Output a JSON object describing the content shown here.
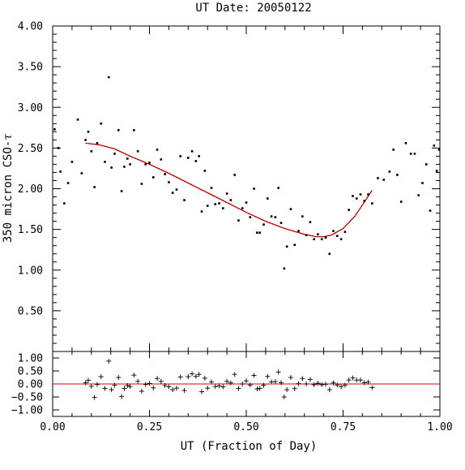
{
  "chart_data": {
    "type": "scatter",
    "title": "UT Date: 20050122",
    "xlabel": "UT (Fraction of Day)",
    "ylabel": "350 micron CSO-",
    "ylabel_symbol": "τ",
    "xlim": [
      0,
      1
    ],
    "ylim": [
      0,
      4
    ],
    "resid_ylim": [
      -1.25,
      1.25
    ],
    "x_ticks": [
      "0.00",
      "0.25",
      "0.50",
      "0.75",
      "1.00"
    ],
    "x_tick_values": [
      0,
      0.25,
      0.5,
      0.75,
      1.0
    ],
    "y_ticks": [
      "0.50",
      "1.00",
      "1.50",
      "2.00",
      "2.50",
      "3.00",
      "3.50",
      "4.00"
    ],
    "y_tick_values": [
      0.5,
      1.0,
      1.5,
      2.0,
      2.5,
      3.0,
      3.5,
      4.0
    ],
    "resid_ticks": [
      "−1.00",
      "−0.50",
      "0.00",
      "0.50",
      "1.00"
    ],
    "resid_tick_values": [
      -1.0,
      -0.5,
      0.0,
      0.5,
      1.0
    ],
    "fit_color": "#e00000",
    "points": [
      [
        0.005,
        2.73
      ],
      [
        0.015,
        2.5
      ],
      [
        0.02,
        2.21
      ],
      [
        0.03,
        1.82
      ],
      [
        0.04,
        2.07
      ],
      [
        0.05,
        2.33
      ],
      [
        0.065,
        2.85
      ],
      [
        0.075,
        2.19
      ],
      [
        0.085,
        2.6
      ],
      [
        0.092,
        2.7
      ],
      [
        0.1,
        2.46
      ],
      [
        0.108,
        2.02
      ],
      [
        0.115,
        2.56
      ],
      [
        0.125,
        2.8
      ],
      [
        0.135,
        2.33
      ],
      [
        0.145,
        3.37
      ],
      [
        0.152,
        2.26
      ],
      [
        0.16,
        2.43
      ],
      [
        0.17,
        2.72
      ],
      [
        0.178,
        1.97
      ],
      [
        0.185,
        2.27
      ],
      [
        0.193,
        2.37
      ],
      [
        0.2,
        2.3
      ],
      [
        0.21,
        2.72
      ],
      [
        0.22,
        2.46
      ],
      [
        0.23,
        2.06
      ],
      [
        0.24,
        2.3
      ],
      [
        0.25,
        2.32
      ],
      [
        0.26,
        2.14
      ],
      [
        0.27,
        2.48
      ],
      [
        0.28,
        2.36
      ],
      [
        0.29,
        2.18
      ],
      [
        0.3,
        2.08
      ],
      [
        0.31,
        1.95
      ],
      [
        0.32,
        1.99
      ],
      [
        0.33,
        2.4
      ],
      [
        0.34,
        1.86
      ],
      [
        0.35,
        2.38
      ],
      [
        0.36,
        2.46
      ],
      [
        0.37,
        2.34
      ],
      [
        0.378,
        2.4
      ],
      [
        0.385,
        1.72
      ],
      [
        0.393,
        2.22
      ],
      [
        0.4,
        1.79
      ],
      [
        0.41,
        2.01
      ],
      [
        0.42,
        1.81
      ],
      [
        0.43,
        1.82
      ],
      [
        0.44,
        1.76
      ],
      [
        0.45,
        1.94
      ],
      [
        0.46,
        1.86
      ],
      [
        0.47,
        2.17
      ],
      [
        0.48,
        1.61
      ],
      [
        0.49,
        1.76
      ],
      [
        0.5,
        1.83
      ],
      [
        0.51,
        1.65
      ],
      [
        0.52,
        2.0
      ],
      [
        0.528,
        1.46
      ],
      [
        0.535,
        1.46
      ],
      [
        0.545,
        1.56
      ],
      [
        0.555,
        1.88
      ],
      [
        0.565,
        1.66
      ],
      [
        0.575,
        1.65
      ],
      [
        0.583,
        2.01
      ],
      [
        0.59,
        1.58
      ],
      [
        0.598,
        1.02
      ],
      [
        0.605,
        1.29
      ],
      [
        0.615,
        1.75
      ],
      [
        0.625,
        1.31
      ],
      [
        0.635,
        1.48
      ],
      [
        0.645,
        1.66
      ],
      [
        0.655,
        1.43
      ],
      [
        0.665,
        1.59
      ],
      [
        0.675,
        1.38
      ],
      [
        0.685,
        1.44
      ],
      [
        0.695,
        1.38
      ],
      [
        0.705,
        1.4
      ],
      [
        0.715,
        1.2
      ],
      [
        0.725,
        1.48
      ],
      [
        0.735,
        1.42
      ],
      [
        0.745,
        1.38
      ],
      [
        0.755,
        1.47
      ],
      [
        0.765,
        1.74
      ],
      [
        0.775,
        1.91
      ],
      [
        0.785,
        1.88
      ],
      [
        0.795,
        1.93
      ],
      [
        0.805,
        1.85
      ],
      [
        0.815,
        1.93
      ],
      [
        0.825,
        1.82
      ],
      [
        0.84,
        2.13
      ],
      [
        0.855,
        2.11
      ],
      [
        0.87,
        2.21
      ],
      [
        0.88,
        2.48
      ],
      [
        0.89,
        2.17
      ],
      [
        0.9,
        1.84
      ],
      [
        0.912,
        2.56
      ],
      [
        0.925,
        2.43
      ],
      [
        0.935,
        2.43
      ],
      [
        0.945,
        1.92
      ],
      [
        0.955,
        2.07
      ],
      [
        0.965,
        2.3
      ],
      [
        0.975,
        1.73
      ],
      [
        0.985,
        2.53
      ],
      [
        0.992,
        2.22
      ],
      [
        0.998,
        2.48
      ]
    ],
    "fit": [
      [
        0.085,
        2.56
      ],
      [
        0.12,
        2.54
      ],
      [
        0.16,
        2.49
      ],
      [
        0.2,
        2.4
      ],
      [
        0.25,
        2.3
      ],
      [
        0.3,
        2.19
      ],
      [
        0.35,
        2.07
      ],
      [
        0.4,
        1.95
      ],
      [
        0.45,
        1.83
      ],
      [
        0.5,
        1.71
      ],
      [
        0.55,
        1.6
      ],
      [
        0.6,
        1.51
      ],
      [
        0.65,
        1.44
      ],
      [
        0.68,
        1.41
      ],
      [
        0.7,
        1.41
      ],
      [
        0.72,
        1.43
      ],
      [
        0.75,
        1.51
      ],
      [
        0.78,
        1.66
      ],
      [
        0.8,
        1.8
      ],
      [
        0.825,
        1.98
      ]
    ],
    "residuals": [
      [
        0.085,
        0.05
      ],
      [
        0.092,
        0.14
      ],
      [
        0.1,
        -0.09
      ],
      [
        0.108,
        -0.52
      ],
      [
        0.115,
        -0.02
      ],
      [
        0.125,
        0.28
      ],
      [
        0.135,
        -0.17
      ],
      [
        0.145,
        0.88
      ],
      [
        0.152,
        -0.22
      ],
      [
        0.16,
        -0.05
      ],
      [
        0.17,
        0.25
      ],
      [
        0.178,
        -0.48
      ],
      [
        0.185,
        -0.17
      ],
      [
        0.193,
        -0.06
      ],
      [
        0.2,
        -0.1
      ],
      [
        0.21,
        0.34
      ],
      [
        0.22,
        0.1
      ],
      [
        0.23,
        -0.28
      ],
      [
        0.24,
        -0.02
      ],
      [
        0.25,
        0.02
      ],
      [
        0.26,
        -0.15
      ],
      [
        0.27,
        0.21
      ],
      [
        0.28,
        0.1
      ],
      [
        0.29,
        -0.06
      ],
      [
        0.3,
        -0.11
      ],
      [
        0.31,
        -0.22
      ],
      [
        0.32,
        -0.16
      ],
      [
        0.33,
        0.27
      ],
      [
        0.34,
        -0.25
      ],
      [
        0.35,
        0.28
      ],
      [
        0.36,
        0.39
      ],
      [
        0.37,
        0.29
      ],
      [
        0.378,
        0.37
      ],
      [
        0.385,
        -0.3
      ],
      [
        0.393,
        0.22
      ],
      [
        0.4,
        -0.16
      ],
      [
        0.41,
        0.08
      ],
      [
        0.42,
        -0.1
      ],
      [
        0.43,
        -0.07
      ],
      [
        0.44,
        -0.11
      ],
      [
        0.45,
        0.1
      ],
      [
        0.46,
        0.04
      ],
      [
        0.47,
        0.37
      ],
      [
        0.48,
        -0.17
      ],
      [
        0.49,
        0.0
      ],
      [
        0.5,
        0.12
      ],
      [
        0.51,
        -0.04
      ],
      [
        0.52,
        0.33
      ],
      [
        0.528,
        -0.19
      ],
      [
        0.535,
        -0.17
      ],
      [
        0.545,
        -0.05
      ],
      [
        0.555,
        0.29
      ],
      [
        0.565,
        0.08
      ],
      [
        0.575,
        0.09
      ],
      [
        0.583,
        0.46
      ],
      [
        0.59,
        0.05
      ],
      [
        0.598,
        -0.5
      ],
      [
        0.605,
        -0.22
      ],
      [
        0.615,
        0.25
      ],
      [
        0.625,
        -0.18
      ],
      [
        0.635,
        0.01
      ],
      [
        0.645,
        0.21
      ],
      [
        0.655,
        0.0
      ],
      [
        0.665,
        0.17
      ],
      [
        0.675,
        -0.03
      ],
      [
        0.685,
        0.03
      ],
      [
        0.695,
        -0.03
      ],
      [
        0.705,
        -0.01
      ],
      [
        0.715,
        -0.22
      ],
      [
        0.725,
        0.04
      ],
      [
        0.735,
        -0.04
      ],
      [
        0.745,
        -0.1
      ],
      [
        0.755,
        -0.05
      ],
      [
        0.765,
        0.15
      ],
      [
        0.775,
        0.23
      ],
      [
        0.785,
        0.15
      ],
      [
        0.795,
        0.15
      ],
      [
        0.805,
        0.05
      ],
      [
        0.815,
        0.07
      ],
      [
        0.825,
        -0.14
      ]
    ]
  }
}
